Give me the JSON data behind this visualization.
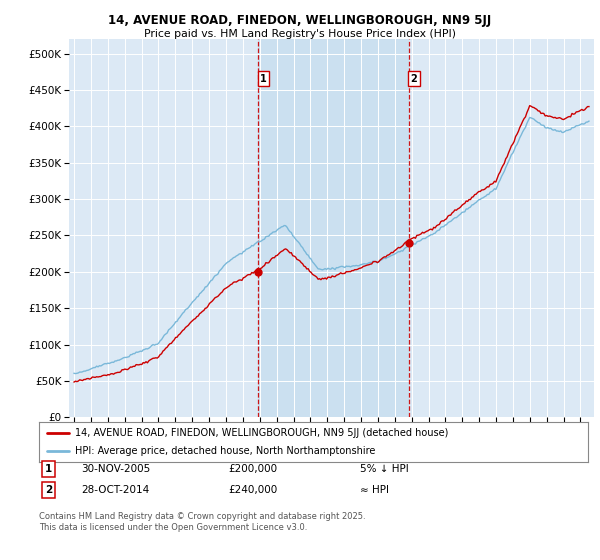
{
  "title1": "14, AVENUE ROAD, FINEDON, WELLINGBOROUGH, NN9 5JJ",
  "title2": "Price paid vs. HM Land Registry's House Price Index (HPI)",
  "background_color": "#ffffff",
  "plot_background": "#dce9f5",
  "shade_color": "#c8dff0",
  "grid_color": "#ffffff",
  "hpi_color": "#7ab8d9",
  "price_color": "#cc0000",
  "vline_color": "#cc0000",
  "legend_line1": "14, AVENUE ROAD, FINEDON, WELLINGBOROUGH, NN9 5JJ (detached house)",
  "legend_line2": "HPI: Average price, detached house, North Northamptonshire",
  "note1_label": "1",
  "note1_date": "30-NOV-2005",
  "note1_price": "£200,000",
  "note1_rel": "5% ↓ HPI",
  "note2_label": "2",
  "note2_date": "28-OCT-2014",
  "note2_price": "£240,000",
  "note2_rel": "≈ HPI",
  "footer": "Contains HM Land Registry data © Crown copyright and database right 2025.\nThis data is licensed under the Open Government Licence v3.0.",
  "ylim_min": 0,
  "ylim_max": 520000,
  "yticks": [
    0,
    50000,
    100000,
    150000,
    200000,
    250000,
    300000,
    350000,
    400000,
    450000,
    500000
  ],
  "sale1_year": 2005.917,
  "sale1_price": 200000,
  "sale2_year": 2014.833,
  "sale2_price": 240000
}
